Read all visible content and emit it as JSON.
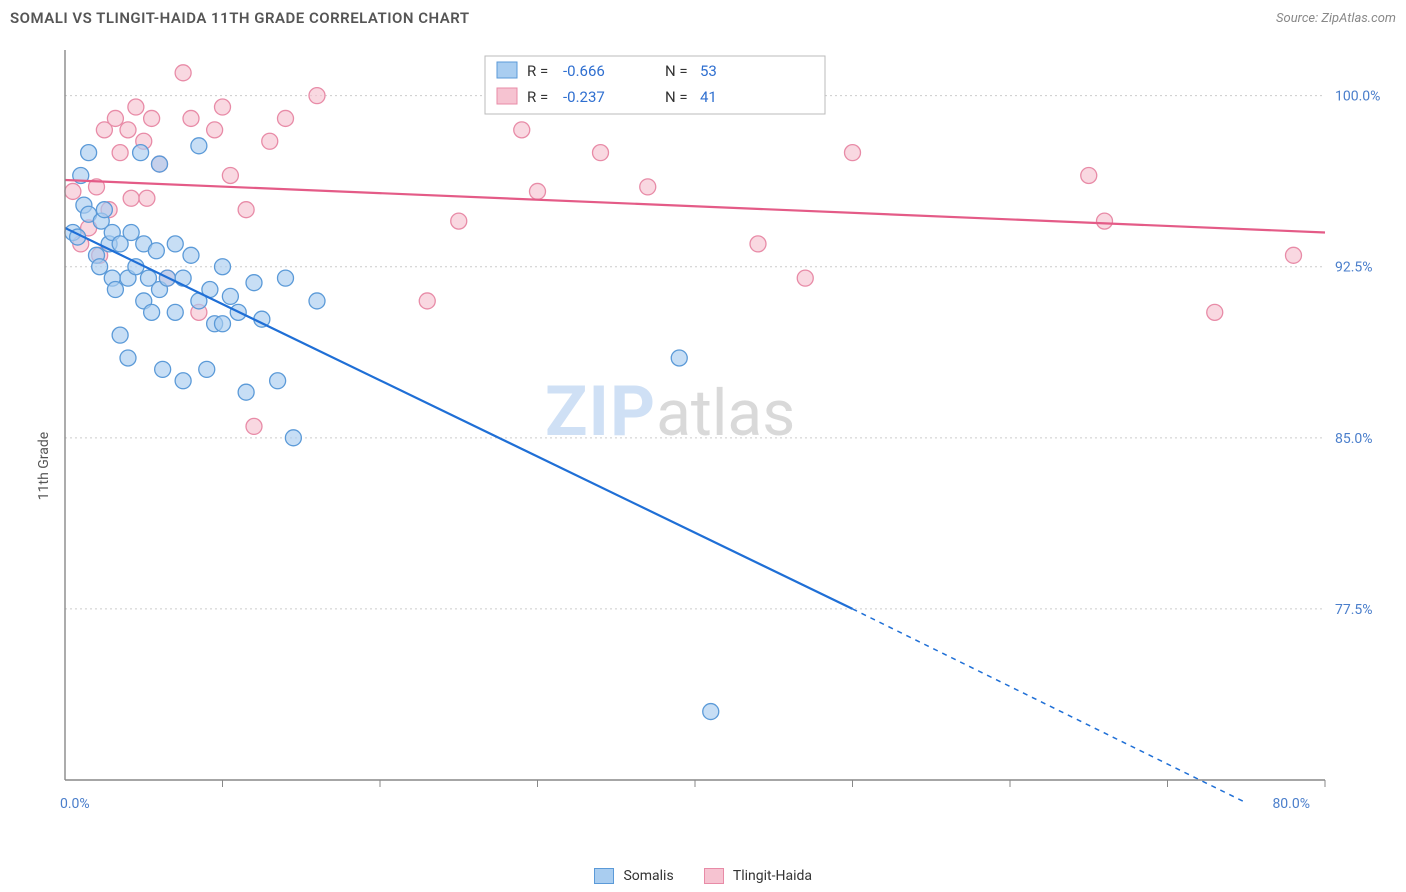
{
  "title": "SOMALI VS TLINGIT-HAIDA 11TH GRADE CORRELATION CHART",
  "source": "Source: ZipAtlas.com",
  "y_axis_label": "11th Grade",
  "chart": {
    "type": "scatter",
    "background_color": "#ffffff",
    "grid_color": "#cccccc",
    "axis_color": "#888888",
    "label_color": "#4a7ecb",
    "xlim": [
      0,
      80
    ],
    "ylim": [
      70,
      102
    ],
    "yticks": [
      77.5,
      85.0,
      92.5,
      100.0
    ],
    "ytick_labels": [
      "77.5%",
      "85.0%",
      "92.5%",
      "100.0%"
    ],
    "xtick_labels": [
      "0.0%",
      "80.0%"
    ],
    "xticks_minor": [
      10,
      20,
      30,
      40,
      50,
      60,
      70,
      80
    ],
    "label_fontsize": 14,
    "series": [
      {
        "name": "Somalis",
        "key": "somalis",
        "fill": "#a9cdf0",
        "stroke": "#5b9ad8",
        "trend_color": "#1f6fd6",
        "R": "-0.666",
        "N": "53",
        "trend": {
          "x1": 0,
          "y1": 94.2,
          "x2": 50,
          "y2": 77.5,
          "x2_dash": 75,
          "y2_dash": 69
        },
        "marker_radius": 8,
        "points": [
          [
            0.5,
            94.0
          ],
          [
            0.8,
            93.8
          ],
          [
            1.0,
            96.5
          ],
          [
            1.2,
            95.2
          ],
          [
            1.5,
            97.5
          ],
          [
            1.5,
            94.8
          ],
          [
            2.0,
            93.0
          ],
          [
            2.2,
            92.5
          ],
          [
            2.3,
            94.5
          ],
          [
            2.5,
            95.0
          ],
          [
            2.8,
            93.5
          ],
          [
            3.0,
            92.0
          ],
          [
            3.0,
            94.0
          ],
          [
            3.2,
            91.5
          ],
          [
            3.5,
            89.5
          ],
          [
            3.5,
            93.5
          ],
          [
            4.0,
            88.5
          ],
          [
            4.0,
            92.0
          ],
          [
            4.2,
            94.0
          ],
          [
            4.5,
            92.5
          ],
          [
            4.8,
            97.5
          ],
          [
            5.0,
            91.0
          ],
          [
            5.0,
            93.5
          ],
          [
            5.3,
            92.0
          ],
          [
            5.5,
            90.5
          ],
          [
            5.8,
            93.2
          ],
          [
            6.0,
            91.5
          ],
          [
            6.2,
            88.0
          ],
          [
            6.5,
            92.0
          ],
          [
            7.0,
            93.5
          ],
          [
            7.0,
            90.5
          ],
          [
            7.5,
            92.0
          ],
          [
            7.5,
            87.5
          ],
          [
            8.0,
            93.0
          ],
          [
            8.5,
            91.0
          ],
          [
            8.5,
            97.8
          ],
          [
            9.0,
            88.0
          ],
          [
            9.2,
            91.5
          ],
          [
            9.5,
            90.0
          ],
          [
            10.0,
            92.5
          ],
          [
            10.0,
            90.0
          ],
          [
            10.5,
            91.2
          ],
          [
            11.0,
            90.5
          ],
          [
            11.5,
            87.0
          ],
          [
            12.0,
            91.8
          ],
          [
            12.5,
            90.2
          ],
          [
            13.5,
            87.5
          ],
          [
            14.0,
            92.0
          ],
          [
            14.5,
            85.0
          ],
          [
            16.0,
            91.0
          ],
          [
            6.0,
            97.0
          ],
          [
            39.0,
            88.5
          ],
          [
            41.0,
            73.0
          ]
        ]
      },
      {
        "name": "Tlingit-Haida",
        "key": "tlingit",
        "fill": "#f6c3d1",
        "stroke": "#e88ba7",
        "trend_color": "#e45b87",
        "R": "-0.237",
        "N": "41",
        "trend": {
          "x1": 0,
          "y1": 96.3,
          "x2": 80,
          "y2": 94.0
        },
        "marker_radius": 8,
        "points": [
          [
            0.5,
            95.8
          ],
          [
            1.0,
            93.5
          ],
          [
            1.5,
            94.2
          ],
          [
            2.0,
            96.0
          ],
          [
            2.2,
            93.0
          ],
          [
            2.5,
            98.5
          ],
          [
            2.8,
            95.0
          ],
          [
            3.2,
            99.0
          ],
          [
            3.5,
            97.5
          ],
          [
            4.0,
            98.5
          ],
          [
            4.2,
            95.5
          ],
          [
            4.5,
            99.5
          ],
          [
            5.0,
            98.0
          ],
          [
            5.2,
            95.5
          ],
          [
            5.5,
            99.0
          ],
          [
            6.0,
            97.0
          ],
          [
            6.5,
            92.0
          ],
          [
            7.5,
            101.0
          ],
          [
            8.0,
            99.0
          ],
          [
            8.5,
            90.5
          ],
          [
            9.5,
            98.5
          ],
          [
            10.0,
            99.5
          ],
          [
            10.5,
            96.5
          ],
          [
            11.5,
            95.0
          ],
          [
            12.0,
            85.5
          ],
          [
            13.0,
            98.0
          ],
          [
            14.0,
            99.0
          ],
          [
            16.0,
            100.0
          ],
          [
            23.0,
            91.0
          ],
          [
            25.0,
            94.5
          ],
          [
            29.0,
            98.5
          ],
          [
            30.0,
            95.8
          ],
          [
            34.0,
            97.5
          ],
          [
            37.0,
            96.0
          ],
          [
            44.0,
            93.5
          ],
          [
            47.0,
            92.0
          ],
          [
            50.0,
            97.5
          ],
          [
            65.0,
            96.5
          ],
          [
            66.0,
            94.5
          ],
          [
            73.0,
            90.5
          ],
          [
            78.0,
            93.0
          ]
        ]
      }
    ],
    "watermark": {
      "text_bold": "ZIP",
      "text_rest": "atlas",
      "bold_color": "#cfe0f5",
      "rest_color": "#d9d9d9"
    }
  },
  "legend_stats": {
    "R_label": "R =",
    "N_label": "N ="
  },
  "bottom_legend": [
    {
      "label": "Somalis",
      "fill": "#a9cdf0",
      "stroke": "#5b9ad8"
    },
    {
      "label": "Tlingit-Haida",
      "fill": "#f6c3d1",
      "stroke": "#e88ba7"
    }
  ]
}
